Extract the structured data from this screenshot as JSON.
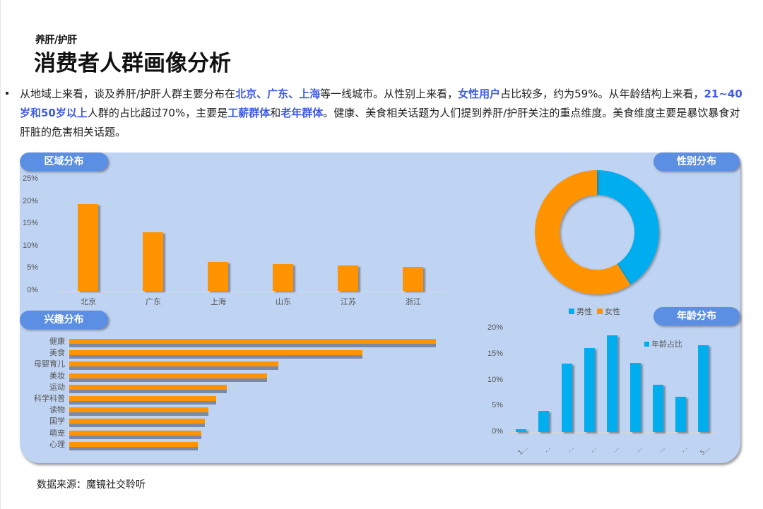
{
  "header": {
    "subtitle": "养肝/护肝",
    "title": "消费者人群画像分析"
  },
  "summary": {
    "segments": [
      {
        "text": "从地域上来看，谈及养肝/护肝人群主要分布在",
        "highlight": false
      },
      {
        "text": "北京、广东、上海",
        "highlight": true
      },
      {
        "text": "等一线城市。从性别上来看，",
        "highlight": false
      },
      {
        "text": "女性用户",
        "highlight": true
      },
      {
        "text": "占比较多，约为59%。从年龄结构上来看，",
        "highlight": false
      },
      {
        "text": "21~40岁和50岁以上",
        "highlight": true
      },
      {
        "text": "人群的占比超过70%，主要是",
        "highlight": false
      },
      {
        "text": "工薪群体",
        "highlight": true
      },
      {
        "text": "和",
        "highlight": false
      },
      {
        "text": "老年群体",
        "highlight": true
      },
      {
        "text": "。健康、美食相关话题为人们提到养肝/护肝关注的重点维度。美食维度主要是暴饮暴食对肝脏的危害相关话题。",
        "highlight": false
      }
    ],
    "highlight_color": "#3e5ae6"
  },
  "panels": {
    "region_tag": "区域分布",
    "gender_tag": "性别分布",
    "interest_tag": "兴趣分布",
    "age_tag": "年龄分布"
  },
  "colors": {
    "panel_bg": "#bfd4f3",
    "tag_bg": "#5b8fe3",
    "orange": "#ff9400",
    "blue": "#00aeef"
  },
  "chart_data": [
    {
      "type": "bar",
      "title": "区域分布",
      "categories": [
        "北京",
        "广东",
        "上海",
        "山东",
        "江苏",
        "浙江"
      ],
      "values": [
        19.5,
        13.1,
        6.5,
        6.0,
        5.7,
        5.4
      ],
      "yticks": [
        "0%",
        "5%",
        "10%",
        "15%",
        "20%",
        "25%"
      ],
      "ylim": [
        0,
        25
      ],
      "unit": "%",
      "color": "#ff9400"
    },
    {
      "type": "pie",
      "title": "性别分布",
      "donut": true,
      "labels": [
        "男性",
        "女性"
      ],
      "values": [
        41,
        59
      ],
      "colors": [
        "#00aeef",
        "#ff9400"
      ],
      "legend_position": "bottom"
    },
    {
      "type": "bar",
      "orientation": "horizontal",
      "title": "兴趣分布",
      "categories": [
        "健康",
        "美食",
        "母婴育儿",
        "美妆",
        "运动",
        "科学科普",
        "读物",
        "国学",
        "萌宠",
        "心理"
      ],
      "values": [
        100,
        80,
        57,
        54,
        43,
        40,
        38,
        37,
        36,
        35
      ],
      "value_note": "relative (no axis shown)",
      "color": "#ff9400"
    },
    {
      "type": "bar",
      "title": "年龄分布",
      "categories": [
        "1…",
        "…",
        "…",
        "…",
        "…",
        "…",
        "…",
        "…",
        "5…"
      ],
      "series": [
        {
          "name": "年龄占比",
          "values": [
            0.5,
            4.1,
            13.2,
            16.2,
            18.6,
            13.3,
            9.1,
            6.8,
            16.7
          ]
        }
      ],
      "yticks": [
        "0%",
        "5%",
        "10%",
        "15%",
        "20%"
      ],
      "ylim": [
        0,
        20
      ],
      "unit": "%",
      "legend_position": "top-right",
      "color": "#00aeef"
    }
  ],
  "footer": {
    "source": "数据来源：魔镜社交聆听"
  }
}
